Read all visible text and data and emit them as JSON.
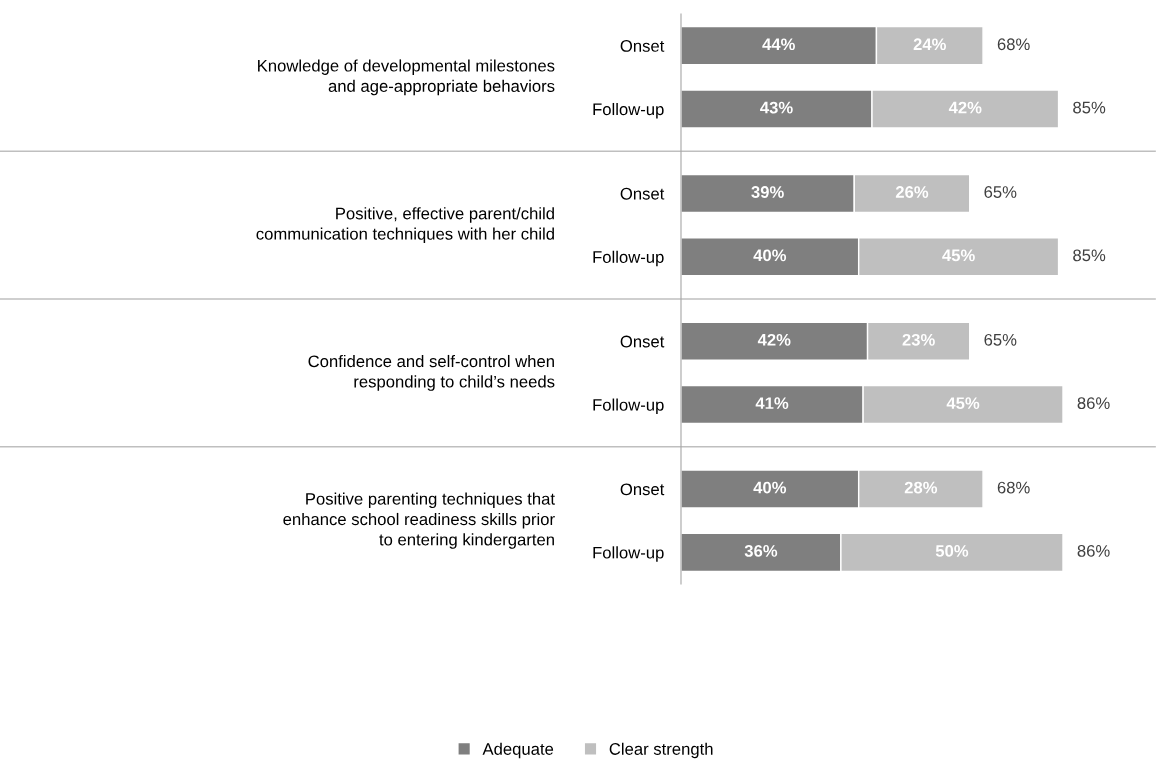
{
  "chart_data": {
    "type": "bar",
    "orientation": "horizontal",
    "stacked": true,
    "categories": [
      "Onset",
      "Follow-up",
      "Onset",
      "Follow-up",
      "Onset",
      "Follow-up",
      "Onset",
      "Follow-up"
    ],
    "series": [
      {
        "name": "Adequate",
        "color": "#7f7f7f",
        "values": [
          44,
          43,
          39,
          40,
          42,
          41,
          40,
          36
        ],
        "value_labels": [
          "44%",
          "43%",
          "39%",
          "40%",
          "42%",
          "41%",
          "40%",
          "36%"
        ]
      },
      {
        "name": "Clear strength",
        "color": "#bfbfbf",
        "values": [
          24,
          42,
          26,
          45,
          23,
          45,
          28,
          50
        ],
        "value_labels": [
          "24%",
          "42%",
          "26%",
          "45%",
          "23%",
          "45%",
          "28%",
          "50%"
        ]
      }
    ],
    "totals": [
      "68%",
      "85%",
      "65%",
      "85%",
      "65%",
      "86%",
      "68%",
      "86%"
    ],
    "annotations": [
      "Knowledge of developmental milestones\nand age-appropriate behaviors",
      "Positive, effective parent/child\ncommunication techniques with her child",
      "Confidence and self-control when\nresponding to child’s needs",
      "Positive parenting techniques that\nenhance school readiness skills prior\nto entering kindergarten"
    ],
    "legend": "bottom"
  }
}
